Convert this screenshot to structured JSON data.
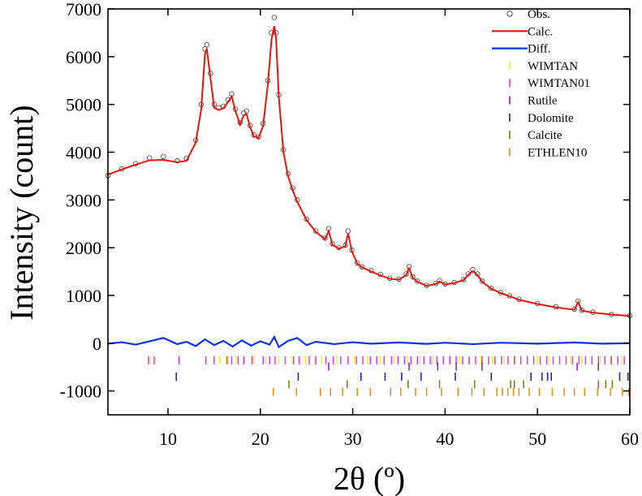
{
  "chart_data": {
    "type": "line",
    "title": "",
    "xlabel": "2θ (º)",
    "ylabel": "Intensity (count)",
    "xlim": [
      3.5,
      60
    ],
    "ylim": [
      -1500,
      7000
    ],
    "x_ticks": [
      10,
      20,
      30,
      40,
      50,
      60
    ],
    "x_tick_labels": [
      "10",
      "20",
      "30",
      "40",
      "50",
      "60"
    ],
    "y_ticks": [
      -1000,
      0,
      1000,
      2000,
      3000,
      4000,
      5000,
      6000,
      7000
    ],
    "y_tick_labels": [
      "-1000",
      "0",
      "1000",
      "2000",
      "3000",
      "4000",
      "5000",
      "6000",
      "7000"
    ],
    "legend_position": "top-right",
    "colors": {
      "obs": "#555555",
      "calc": "#e8150c",
      "diff": "#0a33e8",
      "wimtan": "#f2ee2a",
      "wimtan01": "#ee30e0",
      "rutile": "#8a1aa8",
      "dolomite": "#1c1a9e",
      "calcite": "#7d7a10",
      "ethlen10": "#f08a10"
    },
    "series": [
      {
        "name": "Obs.",
        "key": "obs",
        "style": "markers",
        "x": [
          3.5,
          5,
          6.5,
          8,
          9.5,
          11,
          12,
          13,
          13.6,
          14,
          14.2,
          14.6,
          15,
          15.5,
          16,
          16.5,
          16.9,
          17.3,
          17.8,
          18.2,
          18.5,
          18.9,
          19.3,
          19.8,
          20.3,
          20.8,
          21.2,
          21.5,
          21.7,
          22,
          22.5,
          23,
          23.5,
          24,
          25,
          26,
          27,
          27.4,
          27.8,
          28.5,
          29.2,
          29.5,
          29.9,
          30.5,
          31,
          32,
          33,
          34,
          35,
          35.8,
          36.1,
          36.5,
          37,
          38,
          39,
          39.4,
          40,
          41,
          42,
          42.5,
          43,
          43.5,
          44,
          45,
          46,
          47,
          48,
          50,
          52,
          54,
          54.4,
          54.8,
          56,
          58,
          60
        ],
        "y": [
          3510,
          3650,
          3760,
          3880,
          3910,
          3820,
          3870,
          4250,
          5000,
          6160,
          6250,
          5650,
          5000,
          4930,
          4960,
          5100,
          5220,
          4900,
          4620,
          4820,
          4860,
          4560,
          4360,
          4320,
          4600,
          5500,
          6500,
          6820,
          6500,
          5200,
          4050,
          3550,
          3250,
          3000,
          2600,
          2350,
          2200,
          2400,
          2080,
          2000,
          2050,
          2350,
          1950,
          1680,
          1600,
          1520,
          1440,
          1360,
          1340,
          1450,
          1600,
          1390,
          1300,
          1210,
          1250,
          1310,
          1240,
          1270,
          1330,
          1450,
          1540,
          1450,
          1300,
          1150,
          1060,
          990,
          920,
          830,
          760,
          710,
          880,
          690,
          650,
          600,
          580
        ]
      },
      {
        "name": "Calc.",
        "key": "calc",
        "style": "line",
        "x": [
          3.5,
          5,
          6.5,
          8,
          9.5,
          11,
          12,
          13,
          13.6,
          14,
          14.2,
          14.6,
          15,
          15.5,
          16,
          16.5,
          16.9,
          17.3,
          17.8,
          18.2,
          18.5,
          18.9,
          19.3,
          19.8,
          20.3,
          20.8,
          21.2,
          21.5,
          21.7,
          22,
          22.5,
          23,
          23.5,
          24,
          25,
          26,
          27,
          27.4,
          27.8,
          28.5,
          29.2,
          29.5,
          29.9,
          30.5,
          31,
          32,
          33,
          34,
          35,
          35.8,
          36.1,
          36.5,
          37,
          38,
          39,
          39.4,
          40,
          41,
          42,
          42.5,
          43,
          43.5,
          44,
          45,
          46,
          47,
          48,
          50,
          52,
          54,
          54.4,
          54.8,
          56,
          58,
          60
        ],
        "y": [
          3530,
          3640,
          3740,
          3830,
          3840,
          3790,
          3820,
          4200,
          4900,
          6050,
          6170,
          5550,
          4930,
          4880,
          4920,
          5050,
          5170,
          4860,
          4580,
          4770,
          4800,
          4520,
          4330,
          4300,
          4550,
          5400,
          6350,
          6640,
          6380,
          5150,
          4000,
          3500,
          3200,
          2960,
          2580,
          2330,
          2180,
          2350,
          2060,
          1980,
          2030,
          2300,
          1930,
          1660,
          1590,
          1500,
          1420,
          1350,
          1330,
          1430,
          1570,
          1370,
          1290,
          1200,
          1240,
          1290,
          1230,
          1260,
          1320,
          1430,
          1510,
          1430,
          1290,
          1140,
          1050,
          980,
          910,
          820,
          750,
          700,
          860,
          680,
          640,
          600,
          570
        ]
      },
      {
        "name": "Diff.",
        "key": "diff",
        "style": "line",
        "x": [
          3.5,
          5,
          6.5,
          8,
          9.5,
          11,
          12,
          13,
          14,
          15,
          16,
          17,
          18,
          19,
          20,
          21,
          21.5,
          22,
          23,
          24,
          25,
          26,
          28,
          30,
          32,
          35,
          38,
          40,
          43,
          46,
          50,
          54,
          57,
          60
        ],
        "y": [
          -10,
          20,
          -30,
          40,
          110,
          -20,
          30,
          -60,
          80,
          -40,
          50,
          -70,
          60,
          -50,
          40,
          -30,
          130,
          -80,
          50,
          110,
          -40,
          30,
          -20,
          20,
          -10,
          15,
          -15,
          10,
          -20,
          10,
          -10,
          15,
          -10,
          0
        ]
      }
    ],
    "reflection_markers": [
      {
        "name": "WIMTAN",
        "key": "wimtan",
        "y": -350,
        "positions": [
          8.1,
          15.6,
          16.3,
          17.4,
          18.3,
          19.3,
          20.6,
          22.0,
          23.4,
          24.9,
          25.9,
          26.6,
          28.3,
          30.2,
          31.6,
          33.0,
          34.5,
          35.9,
          37.3,
          38.7,
          40.6,
          41.6,
          42.6,
          43.9,
          45.1,
          46.4,
          47.6,
          48.9,
          50.0,
          51.2,
          52.4,
          53.6,
          54.8,
          55.9,
          56.8,
          57.9,
          59.1
        ]
      },
      {
        "name": "WIMTAN01",
        "key": "wimtan01",
        "y": -360,
        "positions": [
          7.9,
          8.5,
          11.2,
          14.1,
          15.0,
          16.4,
          16.9,
          17.6,
          18.2,
          19.1,
          20.3,
          21.0,
          21.6,
          22.7,
          23.6,
          24.2,
          25.3,
          26.0,
          27.1,
          27.9,
          28.7,
          29.5,
          30.4,
          31.1,
          31.9,
          32.6,
          33.4,
          34.2,
          34.9,
          35.6,
          36.3,
          37.0,
          37.7,
          38.4,
          39.1,
          39.8,
          40.5,
          41.2,
          41.9,
          42.6,
          43.3,
          44.0,
          44.7,
          45.4,
          46.1,
          46.8,
          47.5,
          48.2,
          48.9,
          49.6,
          50.3,
          51.0,
          51.7,
          52.4,
          53.1,
          53.8,
          54.5,
          55.2,
          55.9,
          56.6,
          57.3,
          58.0,
          58.7,
          59.4
        ]
      },
      {
        "name": "Rutile",
        "key": "rutile",
        "y": -490,
        "positions": [
          27.4,
          36.1,
          39.2,
          41.2,
          44.0,
          54.3,
          56.6
        ]
      },
      {
        "name": "Dolomite",
        "key": "dolomite",
        "y": -700,
        "positions": [
          10.9,
          24.1,
          30.9,
          33.5,
          35.3,
          37.4,
          41.1,
          45.0,
          49.3,
          50.5,
          51.1,
          51.5,
          58.9,
          59.8
        ]
      },
      {
        "name": "Calcite",
        "key": "calcite",
        "y": -860,
        "positions": [
          23.1,
          29.4,
          36.0,
          39.4,
          43.2,
          47.1,
          47.5,
          48.5,
          56.6,
          57.4,
          58.1
        ]
      },
      {
        "name": "ETHLEN10",
        "key": "ethlen10",
        "y": -1020,
        "positions": [
          21.4,
          23.9,
          26.5,
          27.6,
          28.9,
          30.5,
          31.9,
          34.1,
          35.2,
          36.8,
          38.0,
          39.6,
          41.4,
          42.9,
          44.2,
          45.6,
          46.2,
          46.8,
          47.4,
          48.0,
          49.1,
          50.2,
          51.6,
          52.9,
          54.0,
          55.1,
          56.5,
          57.9,
          59.2,
          59.9
        ]
      }
    ]
  }
}
